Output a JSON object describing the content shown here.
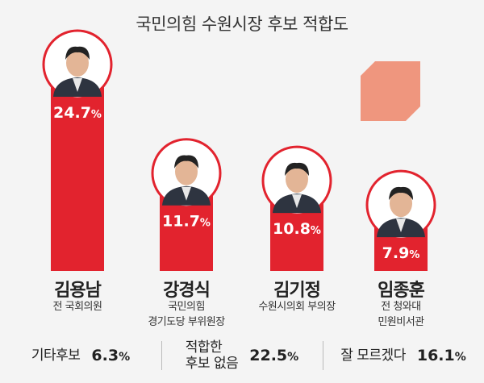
{
  "title": "국민의힘 수원시장 후보 적합도",
  "colors": {
    "bar": "#e2232e",
    "ring": "#e2232e",
    "value_text": "#ffffff",
    "decor": "#ef967e",
    "photo_bg": "#ffffff"
  },
  "chart_data": {
    "type": "bar",
    "title": "국민의힘 수원시장 후보 적합도",
    "unit": "%",
    "categories": [
      "김용남",
      "강경식",
      "김기정",
      "임종훈"
    ],
    "values": [
      24.7,
      11.7,
      10.8,
      7.9
    ],
    "value_labels": [
      "24.7",
      "11.7",
      "10.8",
      "7.9"
    ],
    "ylim": [
      0,
      30
    ]
  },
  "candidates": [
    {
      "name": "김용남",
      "desc_lines": [
        "전 국회의원"
      ],
      "photo_icon": "candidate-photo"
    },
    {
      "name": "강경식",
      "desc_lines": [
        "국민의힘",
        "경기도당 부위원장"
      ],
      "photo_icon": "candidate-photo"
    },
    {
      "name": "김기정",
      "desc_lines": [
        "수원시의회 부의장"
      ],
      "photo_icon": "candidate-photo"
    },
    {
      "name": "임종훈",
      "desc_lines": [
        "전 청와대",
        "민원비서관"
      ],
      "photo_icon": "candidate-photo"
    }
  ],
  "others": [
    {
      "label": "기타후보",
      "value": "6.3",
      "unit": "%"
    },
    {
      "label": "적합한\n후보 없음",
      "value": "22.5",
      "unit": "%"
    },
    {
      "label": "잘 모르겠다",
      "value": "16.1",
      "unit": "%"
    }
  ]
}
